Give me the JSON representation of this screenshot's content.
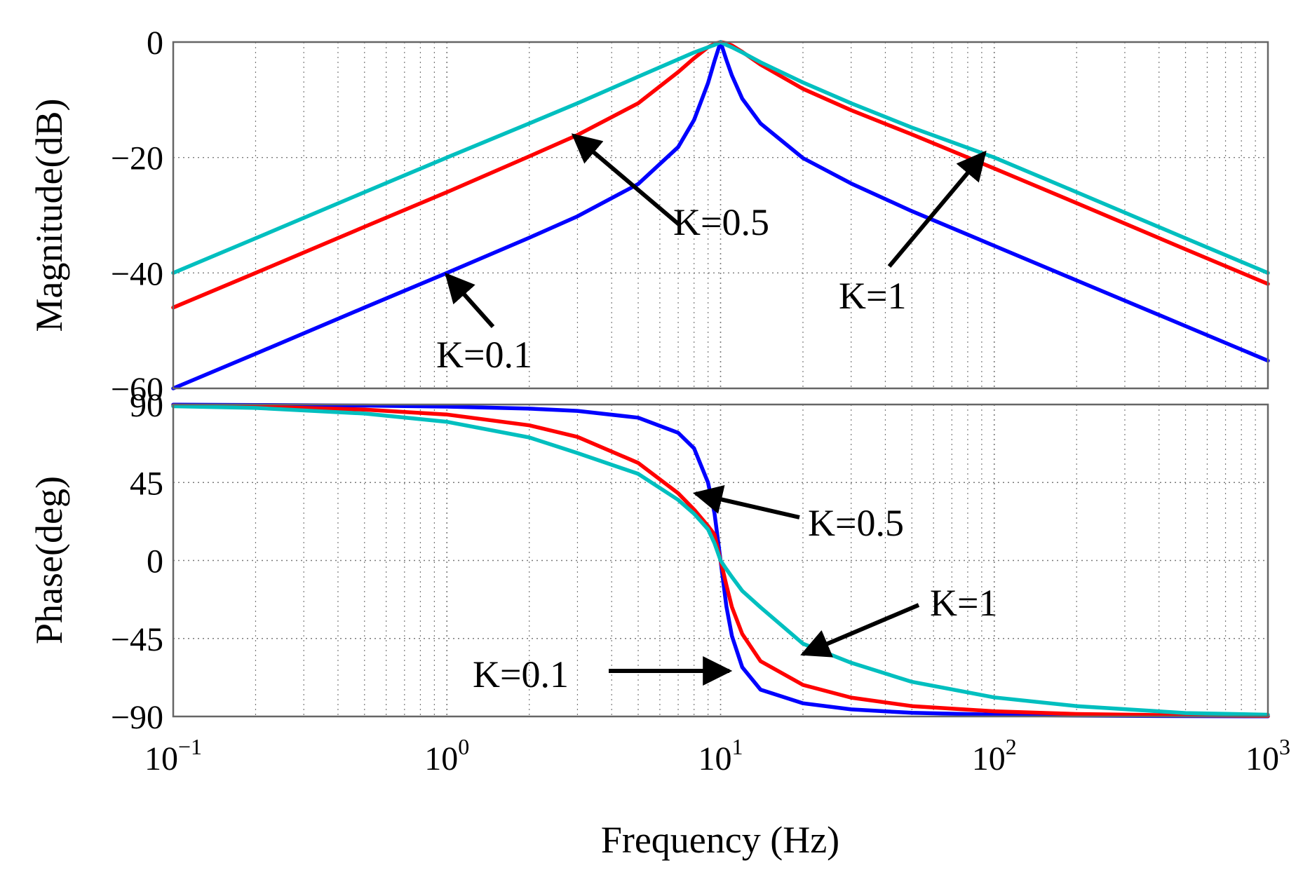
{
  "chart_data": [
    {
      "type": "line",
      "panel": "magnitude",
      "ylabel": "Magnitude(dB)",
      "xlabel": "",
      "xscale": "log",
      "xlim": [
        0.1,
        1000
      ],
      "ylim": [
        -60,
        0
      ],
      "yticks": [
        0,
        -20,
        -40,
        -60
      ],
      "ytick_labels": [
        "0",
        "−20",
        "−40",
        "−60"
      ],
      "grid": true,
      "x": [
        0.1,
        0.2,
        0.5,
        1,
        2,
        3,
        5,
        7,
        8,
        9,
        9.5,
        10,
        10.5,
        11,
        12,
        14,
        20,
        30,
        50,
        100,
        200,
        500,
        1000
      ],
      "series": [
        {
          "color": "#0000ff",
          "values": [
            -60.0,
            -54.0,
            -46.0,
            -40.0,
            -33.9,
            -30.2,
            -24.6,
            -18.2,
            -13.5,
            -7.1,
            -3.3,
            0.0,
            -3.1,
            -5.8,
            -9.8,
            -14.1,
            -20.1,
            -24.5,
            -29.3,
            -35.3,
            -41.3,
            -49.2,
            -55.2
          ]
        },
        {
          "color": "#ff0000",
          "values": [
            -46.0,
            -40.0,
            -32.0,
            -26.0,
            -19.8,
            -16.1,
            -10.6,
            -5.2,
            -2.8,
            -0.9,
            -0.3,
            0.0,
            -0.2,
            -0.6,
            -1.7,
            -3.9,
            -8.1,
            -11.8,
            -16.0,
            -21.9,
            -27.9,
            -35.9,
            -41.9
          ]
        },
        {
          "color": "#00bfbf",
          "values": [
            -40.0,
            -34.0,
            -26.0,
            -20.0,
            -14.1,
            -10.6,
            -6.0,
            -3.0,
            -1.8,
            -0.9,
            -0.5,
            0.0,
            -0.5,
            -0.9,
            -1.8,
            -3.5,
            -7.0,
            -10.6,
            -14.8,
            -20.0,
            -26.0,
            -34.0,
            -40.0
          ]
        }
      ]
    },
    {
      "type": "line",
      "panel": "phase",
      "ylabel": "Phase(deg)",
      "xlabel": "Frequency (Hz)",
      "xscale": "log",
      "xlim": [
        0.1,
        1000
      ],
      "ylim": [
        -90,
        90
      ],
      "yticks": [
        90,
        45,
        0,
        -45,
        -90
      ],
      "ytick_labels": [
        "90",
        "45",
        "0",
        "−45",
        "−90"
      ],
      "xtick_base": [
        "10",
        "10",
        "10",
        "10",
        "10"
      ],
      "xtick_exp": [
        "−1",
        "0",
        "1",
        "2",
        "3"
      ],
      "grid": true,
      "x": [
        0.1,
        0.2,
        0.5,
        1,
        2,
        3,
        5,
        7,
        8,
        9,
        9.5,
        10,
        10.5,
        11,
        12,
        14,
        20,
        30,
        50,
        100,
        200,
        500,
        1000
      ],
      "series": [
        {
          "color": "#0000ff",
          "values": [
            89.9,
            89.7,
            89.4,
            88.8,
            87.6,
            86.3,
            82.4,
            73.7,
            64.7,
            45.0,
            27.4,
            0.0,
            -26.5,
            -43.6,
            -61.6,
            -74.5,
            -82.4,
            -85.9,
            -87.9,
            -89.0,
            -89.5,
            -89.8,
            -89.9
          ]
        },
        {
          "color": "#ff0000",
          "values": [
            89.4,
            88.8,
            87.1,
            84.2,
            78.0,
            71.3,
            56.3,
            38.8,
            29.4,
            19.9,
            15.0,
            0.0,
            -14.2,
            -26.9,
            -42.4,
            -58.1,
            -71.8,
            -79.1,
            -84.0,
            -87.0,
            -88.6,
            -89.4,
            -89.7
          ]
        },
        {
          "color": "#00bfbf",
          "values": [
            89.0,
            88.0,
            84.8,
            80.0,
            71.0,
            62.0,
            50.0,
            35.0,
            27.0,
            18.0,
            10.0,
            0.0,
            -5.0,
            -9.5,
            -17.5,
            -27.0,
            -48.0,
            -59.0,
            -70.0,
            -79.0,
            -84.0,
            -88.0,
            -89.0
          ]
        }
      ]
    }
  ],
  "annotations": {
    "mag": {
      "k05": "K=0.5",
      "k1": "K=1",
      "k01": "K=0.1"
    },
    "phase": {
      "k05": "K=0.5",
      "k1": "K=1",
      "k01": "K=0.1"
    }
  }
}
